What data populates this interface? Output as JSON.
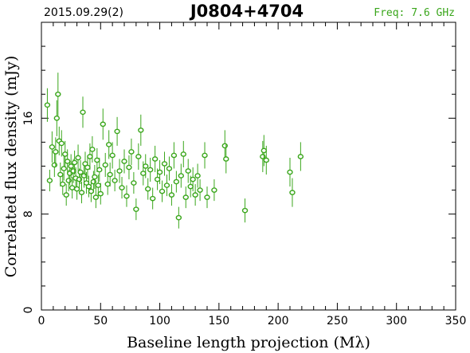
{
  "header": {
    "date": "2015.09.29(2)",
    "source": "J0804+4704",
    "freq": "Freq: 7.6 GHz"
  },
  "colors": {
    "data": "#3aa61b",
    "axis": "#000000"
  },
  "chart_data": {
    "type": "scatter",
    "title": "J0804+4704",
    "xlabel": "Baseline length projection (Mλ)",
    "ylabel": "Correlated flux density (mJy)",
    "xlim": [
      0,
      350
    ],
    "ylim": [
      0,
      24
    ],
    "xticks": [
      0,
      50,
      100,
      150,
      200,
      250,
      300,
      350
    ],
    "yticks": [
      0,
      8,
      16
    ],
    "grid": false,
    "points": [
      [
        5,
        17.1,
        1.4
      ],
      [
        7,
        10.8,
        0.9
      ],
      [
        9,
        13.6,
        1.3
      ],
      [
        11,
        12.1,
        1.0
      ],
      [
        12,
        13.2,
        1.2
      ],
      [
        13,
        16.0,
        1.5
      ],
      [
        14,
        18.0,
        1.8
      ],
      [
        15,
        14.1,
        1.2
      ],
      [
        16,
        11.3,
        1.0
      ],
      [
        17,
        13.9,
        1.1
      ],
      [
        18,
        10.5,
        0.9
      ],
      [
        19,
        11.8,
        1.0
      ],
      [
        20,
        13.0,
        1.1
      ],
      [
        21,
        9.6,
        0.9
      ],
      [
        22,
        12.4,
        1.0
      ],
      [
        23,
        10.8,
        0.9
      ],
      [
        24,
        11.4,
        1.0
      ],
      [
        25,
        12.0,
        1.0
      ],
      [
        26,
        10.2,
        0.9
      ],
      [
        27,
        11.6,
        1.0
      ],
      [
        28,
        12.3,
        1.0
      ],
      [
        29,
        11.0,
        0.9
      ],
      [
        30,
        10.1,
        0.9
      ],
      [
        31,
        12.7,
        1.1
      ],
      [
        32,
        10.9,
        0.9
      ],
      [
        33,
        11.5,
        1.0
      ],
      [
        34,
        9.8,
        0.9
      ],
      [
        35,
        16.5,
        1.3
      ],
      [
        36,
        11.2,
        1.0
      ],
      [
        37,
        12.2,
        1.0
      ],
      [
        38,
        10.6,
        0.9
      ],
      [
        39,
        11.9,
        1.0
      ],
      [
        40,
        10.3,
        0.9
      ],
      [
        41,
        12.8,
        1.1
      ],
      [
        42,
        9.9,
        0.9
      ],
      [
        43,
        13.4,
        1.1
      ],
      [
        44,
        10.7,
        0.9
      ],
      [
        45,
        11.1,
        1.0
      ],
      [
        46,
        9.4,
        0.9
      ],
      [
        47,
        12.5,
        1.0
      ],
      [
        48,
        10.4,
        0.9
      ],
      [
        49,
        11.7,
        1.0
      ],
      [
        50,
        9.7,
        0.9
      ],
      [
        52,
        15.5,
        1.3
      ],
      [
        54,
        12.1,
        1.0
      ],
      [
        56,
        10.5,
        0.9
      ],
      [
        57,
        13.8,
        1.2
      ],
      [
        58,
        11.3,
        1.0
      ],
      [
        60,
        12.9,
        1.1
      ],
      [
        62,
        10.8,
        0.9
      ],
      [
        64,
        14.9,
        1.2
      ],
      [
        66,
        11.6,
        1.0
      ],
      [
        68,
        10.2,
        0.9
      ],
      [
        70,
        12.4,
        1.0
      ],
      [
        72,
        9.5,
        0.9
      ],
      [
        74,
        11.9,
        1.0
      ],
      [
        76,
        13.2,
        1.1
      ],
      [
        78,
        10.6,
        0.9
      ],
      [
        80,
        8.4,
        0.9
      ],
      [
        82,
        12.8,
        1.1
      ],
      [
        84,
        15.0,
        1.3
      ],
      [
        86,
        11.4,
        1.0
      ],
      [
        88,
        12.0,
        1.0
      ],
      [
        90,
        10.1,
        0.9
      ],
      [
        92,
        11.7,
        1.0
      ],
      [
        94,
        9.3,
        0.9
      ],
      [
        96,
        12.6,
        1.1
      ],
      [
        98,
        10.9,
        0.9
      ],
      [
        100,
        11.5,
        1.0
      ],
      [
        102,
        9.9,
        0.9
      ],
      [
        104,
        12.2,
        1.0
      ],
      [
        106,
        10.4,
        0.9
      ],
      [
        108,
        11.8,
        1.0
      ],
      [
        110,
        9.6,
        0.9
      ],
      [
        112,
        12.9,
        1.1
      ],
      [
        114,
        10.7,
        0.9
      ],
      [
        116,
        7.7,
        0.9
      ],
      [
        118,
        11.2,
        1.0
      ],
      [
        120,
        13.0,
        1.1
      ],
      [
        122,
        9.4,
        0.9
      ],
      [
        124,
        11.6,
        1.0
      ],
      [
        126,
        10.3,
        0.9
      ],
      [
        128,
        10.9,
        1.0
      ],
      [
        130,
        9.6,
        0.9
      ],
      [
        132,
        11.2,
        1.0
      ],
      [
        134,
        10.0,
        0.9
      ],
      [
        138,
        12.9,
        1.1
      ],
      [
        140,
        9.4,
        0.9
      ],
      [
        146,
        10.0,
        0.9
      ],
      [
        155,
        13.7,
        1.3
      ],
      [
        156,
        12.6,
        1.2
      ],
      [
        172,
        8.3,
        1.0
      ],
      [
        187,
        12.8,
        1.3
      ],
      [
        188,
        13.3,
        1.3
      ],
      [
        190,
        12.5,
        1.2
      ],
      [
        210,
        11.5,
        1.2
      ],
      [
        212,
        9.8,
        1.2
      ],
      [
        219,
        12.8,
        1.2
      ]
    ]
  }
}
